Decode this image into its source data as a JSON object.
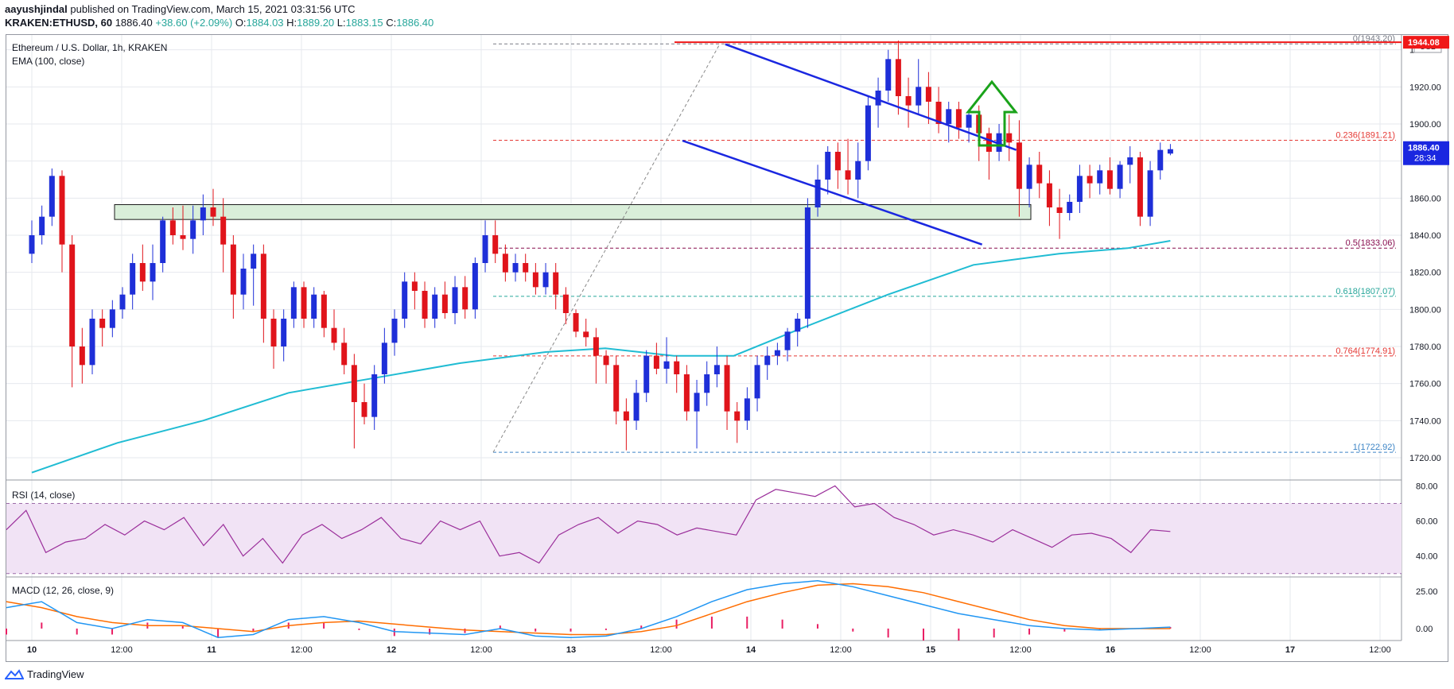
{
  "header": {
    "author": "aayushjindal",
    "published_text": "published on TradingView.com, March 15, 2021 03:31:56 UTC",
    "symbol": "KRAKEN:ETHUSD, 60",
    "price": "1886.40",
    "change": "+38.60 (+2.09%)",
    "ohlc": {
      "o_label": "O:",
      "o": "1884.03",
      "h_label": "H:",
      "h": "1889.20",
      "l_label": "L:",
      "l": "1883.15",
      "c_label": "C:",
      "c": "1886.40"
    }
  },
  "legend": {
    "pair": "Ethereum / U.S. Dollar, 1h, KRAKEN",
    "ema": "EMA (100, close)",
    "rsi": "RSI (14, close)",
    "macd": "MACD (12, 26, close, 9)"
  },
  "price_axis": {
    "currency": "USD",
    "ticks": [
      "1940.00",
      "1920.00",
      "1900.00",
      "1880.00",
      "1860.00",
      "1840.00",
      "1820.00",
      "1800.00",
      "1780.00",
      "1760.00",
      "1740.00",
      "1720.00"
    ],
    "last_price": "1886.40",
    "countdown": "28:34",
    "red_line_label": "1944.08"
  },
  "rsi_axis": {
    "ticks": [
      "80.00",
      "60.00",
      "40.00"
    ]
  },
  "macd_axis": {
    "ticks": [
      "25.00",
      "0.00"
    ]
  },
  "time_axis": {
    "ticks": [
      "10",
      "12:00",
      "11",
      "12:00",
      "12",
      "12:00",
      "13",
      "12:00",
      "14",
      "12:00",
      "15",
      "12:00",
      "16",
      "12:00",
      "17",
      "12:00"
    ]
  },
  "fib_levels": [
    {
      "label": "0(1943.20)",
      "value": 1943.2,
      "color": "#787b86"
    },
    {
      "label": "0.236(1891.21)",
      "value": 1891.21,
      "color": "#e53935"
    },
    {
      "label": "0.5(1833.06)",
      "value": 1833.06,
      "color": "#880e4f"
    },
    {
      "label": "0.618(1807.07)",
      "value": 1807.07,
      "color": "#26a69a"
    },
    {
      "label": "0.764(1774.91)",
      "value": 1774.91,
      "color": "#e53935"
    },
    {
      "label": "1(1722.92)",
      "value": 1722.92,
      "color": "#3d85c6"
    }
  ],
  "colors": {
    "bull": "#1e2fd8",
    "bear": "#e0141b",
    "ema": "#20bcd3",
    "rsi": "#9b2f9b",
    "macd": "#2196f3",
    "signal": "#ff6d00",
    "hist": "#e91e63",
    "channel": "#1a27e0",
    "arrow": "#1aa31a",
    "zone": "#d9eed9",
    "resistance": "#f01818"
  },
  "footer": {
    "brand": "TradingView"
  },
  "chart_data": {
    "type": "candlestick",
    "title": "Ethereum / U.S. Dollar, 1h, KRAKEN",
    "ylim": [
      1708,
      1948
    ],
    "x_hours": [
      0,
      144
    ],
    "ohlc": [
      [
        1830,
        1848,
        1825,
        1840
      ],
      [
        1840,
        1856,
        1835,
        1850
      ],
      [
        1850,
        1876,
        1845,
        1872
      ],
      [
        1872,
        1875,
        1820,
        1835
      ],
      [
        1835,
        1840,
        1758,
        1780
      ],
      [
        1780,
        1790,
        1760,
        1770
      ],
      [
        1770,
        1800,
        1765,
        1795
      ],
      [
        1795,
        1800,
        1780,
        1790
      ],
      [
        1790,
        1805,
        1785,
        1800
      ],
      [
        1800,
        1812,
        1795,
        1808
      ],
      [
        1808,
        1830,
        1800,
        1825
      ],
      [
        1825,
        1835,
        1810,
        1815
      ],
      [
        1815,
        1835,
        1805,
        1825
      ],
      [
        1825,
        1850,
        1820,
        1848
      ],
      [
        1848,
        1855,
        1835,
        1840
      ],
      [
        1840,
        1856,
        1832,
        1838
      ],
      [
        1838,
        1856,
        1830,
        1848
      ],
      [
        1848,
        1862,
        1840,
        1855
      ],
      [
        1855,
        1865,
        1845,
        1850
      ],
      [
        1850,
        1860,
        1820,
        1835
      ],
      [
        1835,
        1840,
        1795,
        1808
      ],
      [
        1808,
        1830,
        1800,
        1822
      ],
      [
        1822,
        1835,
        1802,
        1830
      ],
      [
        1830,
        1835,
        1782,
        1795
      ],
      [
        1795,
        1800,
        1768,
        1780
      ],
      [
        1780,
        1800,
        1772,
        1795
      ],
      [
        1795,
        1815,
        1790,
        1812
      ],
      [
        1812,
        1815,
        1790,
        1795
      ],
      [
        1795,
        1812,
        1790,
        1808
      ],
      [
        1808,
        1810,
        1785,
        1790
      ],
      [
        1790,
        1800,
        1778,
        1782
      ],
      [
        1782,
        1790,
        1765,
        1770
      ],
      [
        1770,
        1776,
        1725,
        1750
      ],
      [
        1750,
        1760,
        1738,
        1742
      ],
      [
        1742,
        1770,
        1735,
        1765
      ],
      [
        1765,
        1790,
        1760,
        1782
      ],
      [
        1782,
        1800,
        1775,
        1795
      ],
      [
        1795,
        1820,
        1790,
        1815
      ],
      [
        1815,
        1820,
        1800,
        1810
      ],
      [
        1810,
        1815,
        1790,
        1795
      ],
      [
        1795,
        1812,
        1790,
        1808
      ],
      [
        1808,
        1815,
        1795,
        1798
      ],
      [
        1798,
        1818,
        1792,
        1812
      ],
      [
        1812,
        1818,
        1795,
        1800
      ],
      [
        1800,
        1828,
        1795,
        1825
      ],
      [
        1825,
        1848,
        1820,
        1840
      ],
      [
        1840,
        1848,
        1825,
        1830
      ],
      [
        1830,
        1835,
        1815,
        1820
      ],
      [
        1820,
        1830,
        1815,
        1825
      ],
      [
        1825,
        1830,
        1815,
        1820
      ],
      [
        1820,
        1825,
        1808,
        1812
      ],
      [
        1812,
        1825,
        1808,
        1820
      ],
      [
        1820,
        1825,
        1800,
        1808
      ],
      [
        1808,
        1812,
        1792,
        1798
      ],
      [
        1798,
        1800,
        1785,
        1788
      ],
      [
        1788,
        1795,
        1780,
        1785
      ],
      [
        1785,
        1790,
        1760,
        1775
      ],
      [
        1775,
        1778,
        1760,
        1770
      ],
      [
        1770,
        1775,
        1738,
        1745
      ],
      [
        1745,
        1752,
        1724,
        1740
      ],
      [
        1740,
        1762,
        1735,
        1755
      ],
      [
        1755,
        1778,
        1750,
        1775
      ],
      [
        1775,
        1782,
        1765,
        1768
      ],
      [
        1768,
        1785,
        1760,
        1772
      ],
      [
        1772,
        1775,
        1755,
        1765
      ],
      [
        1765,
        1770,
        1740,
        1745
      ],
      [
        1745,
        1762,
        1725,
        1755
      ],
      [
        1755,
        1772,
        1748,
        1765
      ],
      [
        1765,
        1780,
        1758,
        1770
      ],
      [
        1770,
        1775,
        1735,
        1745
      ],
      [
        1745,
        1750,
        1728,
        1740
      ],
      [
        1740,
        1758,
        1735,
        1752
      ],
      [
        1752,
        1775,
        1745,
        1770
      ],
      [
        1770,
        1780,
        1762,
        1775
      ],
      [
        1775,
        1782,
        1770,
        1778
      ],
      [
        1778,
        1790,
        1772,
        1788
      ],
      [
        1788,
        1798,
        1780,
        1795
      ],
      [
        1795,
        1860,
        1790,
        1855
      ],
      [
        1855,
        1878,
        1850,
        1870
      ],
      [
        1870,
        1888,
        1862,
        1885
      ],
      [
        1885,
        1890,
        1865,
        1875
      ],
      [
        1875,
        1892,
        1862,
        1870
      ],
      [
        1870,
        1890,
        1860,
        1880
      ],
      [
        1880,
        1915,
        1875,
        1910
      ],
      [
        1910,
        1925,
        1898,
        1918
      ],
      [
        1918,
        1940,
        1912,
        1935
      ],
      [
        1935,
        1945,
        1905,
        1915
      ],
      [
        1915,
        1925,
        1898,
        1910
      ],
      [
        1910,
        1935,
        1905,
        1920
      ],
      [
        1920,
        1928,
        1900,
        1912
      ],
      [
        1912,
        1920,
        1895,
        1900
      ],
      [
        1900,
        1912,
        1890,
        1908
      ],
      [
        1908,
        1912,
        1892,
        1898
      ],
      [
        1898,
        1908,
        1890,
        1905
      ],
      [
        1905,
        1910,
        1880,
        1895
      ],
      [
        1895,
        1898,
        1870,
        1885
      ],
      [
        1885,
        1900,
        1880,
        1895
      ],
      [
        1895,
        1905,
        1880,
        1890
      ],
      [
        1890,
        1902,
        1850,
        1865
      ],
      [
        1865,
        1882,
        1855,
        1878
      ],
      [
        1878,
        1885,
        1860,
        1868
      ],
      [
        1868,
        1875,
        1845,
        1855
      ],
      [
        1855,
        1865,
        1838,
        1852
      ],
      [
        1852,
        1862,
        1848,
        1858
      ],
      [
        1858,
        1878,
        1852,
        1872
      ],
      [
        1872,
        1878,
        1860,
        1868
      ],
      [
        1868,
        1878,
        1862,
        1875
      ],
      [
        1875,
        1882,
        1862,
        1865
      ],
      [
        1865,
        1880,
        1860,
        1878
      ],
      [
        1878,
        1888,
        1868,
        1882
      ],
      [
        1882,
        1885,
        1845,
        1850
      ],
      [
        1850,
        1880,
        1845,
        1875
      ],
      [
        1875,
        1890,
        1870,
        1886
      ],
      [
        1884.03,
        1889.2,
        1883.15,
        1886.4
      ]
    ],
    "ema100": [
      [
        0,
        1712
      ],
      [
        10,
        1728
      ],
      [
        20,
        1740
      ],
      [
        30,
        1755
      ],
      [
        40,
        1763
      ],
      [
        50,
        1771
      ],
      [
        60,
        1777
      ],
      [
        67,
        1779
      ],
      [
        75,
        1775
      ],
      [
        82,
        1775
      ],
      [
        90,
        1790
      ],
      [
        100,
        1808
      ],
      [
        110,
        1824
      ],
      [
        120,
        1830
      ],
      [
        128,
        1833
      ],
      [
        133,
        1837
      ]
    ],
    "rsi": {
      "ylim": [
        29,
        82
      ],
      "band": [
        30,
        70
      ],
      "values": [
        55,
        66,
        42,
        48,
        50,
        58,
        52,
        60,
        55,
        62,
        46,
        58,
        40,
        50,
        36,
        52,
        58,
        50,
        55,
        62,
        50,
        47,
        60,
        55,
        60,
        40,
        42,
        36,
        52,
        58,
        62,
        53,
        60,
        58,
        52,
        56,
        54,
        52,
        72,
        78,
        76,
        74,
        80,
        68,
        70,
        62,
        58,
        52,
        55,
        52,
        48,
        55,
        50,
        45,
        52,
        53,
        50,
        42,
        55,
        54
      ]
    },
    "macd": {
      "ylim": [
        -8,
        34
      ],
      "macd": [
        14,
        18,
        4,
        0,
        6,
        4,
        -6,
        -4,
        6,
        8,
        4,
        -2,
        -3,
        -4,
        0,
        -5,
        -6,
        -5,
        0,
        8,
        18,
        26,
        30,
        32,
        28,
        22,
        16,
        10,
        6,
        2,
        0,
        -1,
        0,
        1
      ],
      "signal": [
        18,
        14,
        8,
        4,
        2,
        2,
        0,
        -2,
        2,
        4,
        5,
        3,
        1,
        -1,
        -2,
        -3,
        -4,
        -4,
        -2,
        2,
        10,
        18,
        24,
        29,
        30,
        28,
        24,
        18,
        12,
        6,
        2,
        0,
        0,
        0
      ]
    },
    "annotations": {
      "support_zone": [
        1848.5,
        1856.5
      ],
      "resistance_line": 1944.08,
      "channel_upper": [
        [
          81,
          1943
        ],
        [
          115,
          1886
        ]
      ],
      "channel_lower": [
        [
          76,
          1891
        ],
        [
          111,
          1835
        ]
      ],
      "fib_range": [
        1722.92,
        1943.2
      ]
    }
  }
}
